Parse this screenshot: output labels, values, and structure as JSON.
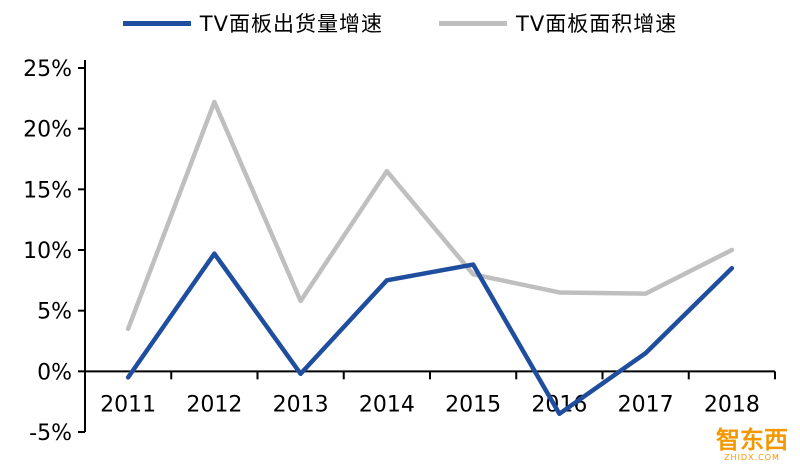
{
  "chart_data": {
    "type": "line",
    "categories": [
      "2011",
      "2012",
      "2013",
      "2014",
      "2015",
      "2016",
      "2017",
      "2018"
    ],
    "series": [
      {
        "name": "TV面板出货量增速",
        "color": "#1F4E9E",
        "values": [
          -0.5,
          9.7,
          -0.2,
          7.5,
          8.8,
          -3.5,
          1.5,
          8.5
        ]
      },
      {
        "name": "TV面板面积增速",
        "color": "#BFBFBF",
        "values": [
          3.5,
          22.2,
          5.8,
          16.5,
          8.0,
          6.5,
          6.4,
          10.0
        ]
      }
    ],
    "title": "",
    "xlabel": "",
    "ylabel": "",
    "ylim": [
      -5,
      25
    ],
    "ytick_step": 5,
    "ytick_labels": [
      "-5%",
      "0%",
      "5%",
      "10%",
      "15%",
      "20%",
      "25%"
    ],
    "legend_position": "top",
    "grid": false,
    "axis_color": "#000000",
    "tick_label_color": "#000000"
  },
  "watermark": {
    "text": "智东西",
    "subtext": "ZHIDX.COM",
    "color": "#F39800"
  }
}
